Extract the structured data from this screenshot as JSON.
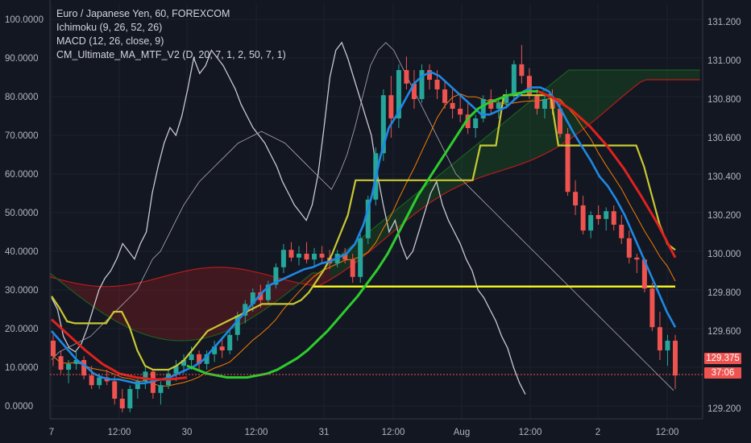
{
  "legend": {
    "symbol": "Euro / Japanese Yen, 60, FOREXCOM",
    "ichimoku": "Ichimoku (9, 26, 52, 26)",
    "macd": "MACD (12, 26, close, 9)",
    "ma": "CM_Ultimate_MA_MTF_V2 (D, 20, 7, 1, 2, 50, 7, 1)"
  },
  "price_tag": {
    "price": "129.375",
    "countdown": "37:06"
  },
  "colors": {
    "background": "#131722",
    "grid": "#1e2230",
    "candle_up": "#26a69a",
    "candle_down": "#ef5350",
    "stoch_white": "#c8c8d0",
    "kijun_yellow": "#c8c832",
    "tenkan_blue": "#1e88e5",
    "ma_green": "#2ecc2e",
    "ma_red": "#e0221e",
    "hline_yellow": "#f0f020",
    "cloud_red": "#b71c1c",
    "cloud_green": "#1b5e20",
    "orange": "#f57c00"
  },
  "chart_data": {
    "type": "line",
    "title": "Euro / Japanese Yen, 60, FOREXCOM",
    "left_axis": {
      "ticks": [
        "100.0000",
        "90.0000",
        "80.0000",
        "70.0000",
        "60.0000",
        "50.0000",
        "40.0000",
        "30.0000",
        "20.0000",
        "10.0000",
        "0.0000"
      ],
      "range": [
        0,
        100
      ]
    },
    "right_axis": {
      "ticks": [
        "131.200",
        "131.000",
        "130.800",
        "130.600",
        "130.400",
        "130.200",
        "130.000",
        "129.800",
        "129.600",
        "129.200"
      ],
      "range": [
        129.1,
        131.3
      ]
    },
    "x_ticks": [
      "7",
      "12:00",
      "30",
      "12:00",
      "31",
      "12:00",
      "Aug",
      "12:00",
      "2",
      "12:00"
    ],
    "horizontal_line": 129.83,
    "candles": [
      [
        129.55,
        129.58,
        129.42,
        129.47
      ],
      [
        129.47,
        129.5,
        129.38,
        129.4
      ],
      [
        129.4,
        129.45,
        129.33,
        129.43
      ],
      [
        129.43,
        129.5,
        129.4,
        129.45
      ],
      [
        129.45,
        129.47,
        129.35,
        129.37
      ],
      [
        129.37,
        129.42,
        129.3,
        129.32
      ],
      [
        129.32,
        129.38,
        129.3,
        129.36
      ],
      [
        129.36,
        129.4,
        129.32,
        129.34
      ],
      [
        129.34,
        129.37,
        129.22,
        129.25
      ],
      [
        129.25,
        129.3,
        129.18,
        129.2
      ],
      [
        129.2,
        129.32,
        129.18,
        129.3
      ],
      [
        129.3,
        129.36,
        129.25,
        129.34
      ],
      [
        129.34,
        129.42,
        129.3,
        129.39
      ],
      [
        129.39,
        129.4,
        129.25,
        129.28
      ],
      [
        129.28,
        129.34,
        129.22,
        129.32
      ],
      [
        129.32,
        129.4,
        129.3,
        129.38
      ],
      [
        129.38,
        129.45,
        129.34,
        129.42
      ],
      [
        129.42,
        129.48,
        129.38,
        129.45
      ],
      [
        129.45,
        129.52,
        129.4,
        129.48
      ],
      [
        129.48,
        129.5,
        129.4,
        129.43
      ],
      [
        129.43,
        129.5,
        129.4,
        129.48
      ],
      [
        129.48,
        129.55,
        129.44,
        129.52
      ],
      [
        129.52,
        129.56,
        129.46,
        129.5
      ],
      [
        129.5,
        129.6,
        129.48,
        129.58
      ],
      [
        129.58,
        129.7,
        129.55,
        129.68
      ],
      [
        129.68,
        129.76,
        129.64,
        129.74
      ],
      [
        129.74,
        129.82,
        129.7,
        129.8
      ],
      [
        129.8,
        129.84,
        129.72,
        129.76
      ],
      [
        129.76,
        129.86,
        129.74,
        129.84
      ],
      [
        129.84,
        129.95,
        129.82,
        129.93
      ],
      [
        129.93,
        130.05,
        129.9,
        130.02
      ],
      [
        130.02,
        130.06,
        129.96,
        129.98
      ],
      [
        129.98,
        130.04,
        129.94,
        130.0
      ],
      [
        130.0,
        130.06,
        129.95,
        129.97
      ],
      [
        129.97,
        130.03,
        129.93,
        130.0
      ],
      [
        130.0,
        130.04,
        129.95,
        129.98
      ],
      [
        129.98,
        130.02,
        129.92,
        129.95
      ],
      [
        129.95,
        130.02,
        129.93,
        130.0
      ],
      [
        130.0,
        130.03,
        129.95,
        129.97
      ],
      [
        129.97,
        130.0,
        129.85,
        129.88
      ],
      [
        129.88,
        130.1,
        129.85,
        130.08
      ],
      [
        130.08,
        130.3,
        130.05,
        130.28
      ],
      [
        130.28,
        130.55,
        130.25,
        130.52
      ],
      [
        130.52,
        130.85,
        130.48,
        130.82
      ],
      [
        130.82,
        130.92,
        130.6,
        130.7
      ],
      [
        130.7,
        130.98,
        130.65,
        130.95
      ],
      [
        130.95,
        131.02,
        130.85,
        130.88
      ],
      [
        130.88,
        130.95,
        130.75,
        130.8
      ],
      [
        130.8,
        130.98,
        130.78,
        130.95
      ],
      [
        130.95,
        130.98,
        130.85,
        130.9
      ],
      [
        130.9,
        130.95,
        130.8,
        130.85
      ],
      [
        130.85,
        130.9,
        130.75,
        130.78
      ],
      [
        130.78,
        130.85,
        130.7,
        130.75
      ],
      [
        130.75,
        130.82,
        130.68,
        130.72
      ],
      [
        130.72,
        130.78,
        130.62,
        130.65
      ],
      [
        130.65,
        130.72,
        130.6,
        130.7
      ],
      [
        130.7,
        130.82,
        130.68,
        130.8
      ],
      [
        130.8,
        130.85,
        130.72,
        130.75
      ],
      [
        130.75,
        130.8,
        130.7,
        130.78
      ],
      [
        130.78,
        130.85,
        130.75,
        130.82
      ],
      [
        130.82,
        131.0,
        130.8,
        130.98
      ],
      [
        130.98,
        131.08,
        130.88,
        130.92
      ],
      [
        130.92,
        130.96,
        130.8,
        130.82
      ],
      [
        130.82,
        130.85,
        130.72,
        130.75
      ],
      [
        130.75,
        130.82,
        130.7,
        130.8
      ],
      [
        130.8,
        130.85,
        130.72,
        130.75
      ],
      [
        130.75,
        130.8,
        130.6,
        130.62
      ],
      [
        130.62,
        130.65,
        130.3,
        130.32
      ],
      [
        130.32,
        130.38,
        130.2,
        130.25
      ],
      [
        130.25,
        130.3,
        130.1,
        130.12
      ],
      [
        130.12,
        130.22,
        130.08,
        130.2
      ],
      [
        130.2,
        130.25,
        130.15,
        130.18
      ],
      [
        130.18,
        130.24,
        130.12,
        130.22
      ],
      [
        130.22,
        130.25,
        130.12,
        130.15
      ],
      [
        130.15,
        130.2,
        130.05,
        130.08
      ],
      [
        130.08,
        130.12,
        129.95,
        129.98
      ],
      [
        129.98,
        130.0,
        129.9,
        129.97
      ],
      [
        129.97,
        129.98,
        129.8,
        129.82
      ],
      [
        129.82,
        129.85,
        129.6,
        129.62
      ],
      [
        129.62,
        129.7,
        129.45,
        129.5
      ],
      [
        129.5,
        129.58,
        129.42,
        129.55
      ],
      [
        129.55,
        129.58,
        129.3,
        129.37
      ]
    ],
    "series": [
      {
        "id": "stoch_white",
        "values": [
          28,
          25,
          18,
          15,
          14,
          16,
          20,
          25,
          30,
          33,
          35,
          38,
          42,
          40,
          38,
          42,
          45,
          55,
          62,
          68,
          72,
          70,
          75,
          82,
          90,
          86,
          88,
          92,
          90,
          88,
          85,
          82,
          78,
          75,
          72,
          70,
          68,
          65,
          62,
          58,
          55,
          52,
          50,
          48,
          52,
          60,
          72,
          85,
          92,
          94,
          90,
          85,
          80,
          75,
          70,
          60,
          52,
          45,
          48,
          42,
          38,
          40,
          45,
          50,
          55,
          58,
          52,
          48,
          45,
          42,
          38,
          35,
          30,
          28,
          25,
          22,
          18,
          15,
          10,
          6,
          3
        ]
      },
      {
        "id": "stoch_thin",
        "values": [
          12,
          14,
          15,
          16,
          17,
          18,
          20,
          22,
          24,
          26,
          28,
          30,
          34,
          38,
          40,
          44,
          48,
          52,
          55,
          58,
          60,
          62,
          64,
          66,
          68,
          69,
          70,
          71,
          70,
          69,
          68,
          66,
          64,
          62,
          60,
          58,
          56,
          60,
          65,
          72,
          80,
          88,
          92,
          94,
          92,
          88,
          84,
          80,
          76,
          72,
          68,
          64,
          60,
          58,
          56,
          54,
          52,
          50,
          48,
          46,
          44,
          42,
          40,
          38,
          36,
          34,
          32,
          30,
          28,
          26,
          24,
          22,
          20,
          18,
          16,
          14,
          12,
          10,
          8,
          6,
          4
        ]
      },
      {
        "id": "kijun_yellow",
        "values": [
          129.78,
          129.72,
          129.65,
          129.64,
          129.64,
          129.64,
          129.64,
          129.64,
          129.7,
          129.7,
          129.62,
          129.5,
          129.42,
          129.4,
          129.4,
          129.4,
          129.42,
          129.45,
          129.5,
          129.55,
          129.6,
          129.62,
          129.64,
          129.66,
          129.68,
          129.7,
          129.72,
          129.74,
          129.74,
          129.74,
          129.74,
          129.74,
          129.76,
          129.8,
          129.86,
          129.92,
          130.0,
          130.1,
          130.2,
          130.38,
          130.38,
          130.38,
          130.38,
          130.38,
          130.38,
          130.38,
          130.38,
          130.38,
          130.38,
          130.38,
          130.38,
          130.38,
          130.38,
          130.38,
          130.38,
          130.56,
          130.56,
          130.56,
          130.82,
          130.82,
          130.82,
          130.82,
          130.82,
          130.82,
          130.82,
          130.56,
          130.56,
          130.56,
          130.56,
          130.56,
          130.56,
          130.56,
          130.56,
          130.56,
          130.56,
          130.56,
          130.45,
          130.3,
          130.15,
          130.05,
          130.02
        ]
      },
      {
        "id": "tenkan_blue",
        "values": [
          129.6,
          129.55,
          129.5,
          129.45,
          129.42,
          129.38,
          129.36,
          129.35,
          129.35,
          129.34,
          129.33,
          129.33,
          129.34,
          129.35,
          129.36,
          129.38,
          129.4,
          129.42,
          129.45,
          129.5,
          129.55,
          129.6,
          129.65,
          129.7,
          129.75,
          129.8,
          129.84,
          129.86,
          129.88,
          129.9,
          129.92,
          129.93,
          129.95,
          129.96,
          129.98,
          130.0,
          130.05,
          130.15,
          130.3,
          130.5,
          130.65,
          130.72,
          130.8,
          130.88,
          130.92,
          130.94,
          130.92,
          130.88,
          130.84,
          130.8,
          130.76,
          130.72,
          130.72,
          130.74,
          130.76,
          130.8,
          130.84,
          130.86,
          130.86,
          130.84,
          130.78,
          130.7,
          130.62,
          130.55,
          130.48,
          130.4,
          130.35,
          130.28,
          130.2,
          130.1,
          130.0,
          129.9,
          129.8,
          129.7,
          129.62
        ]
      },
      {
        "id": "ma_green",
        "values": [
          129.42,
          129.4,
          129.38,
          129.37,
          129.36,
          129.36,
          129.36,
          129.37,
          129.38,
          129.4,
          129.43,
          129.46,
          129.5,
          129.55,
          129.6,
          129.66,
          129.72,
          129.78,
          129.85,
          129.92,
          130.0,
          130.1,
          130.2,
          130.3,
          130.38,
          130.46,
          130.54,
          130.62,
          130.7,
          130.75,
          130.78,
          130.8,
          130.82,
          130.83,
          130.84,
          130.84
        ]
      },
      {
        "id": "ma_red",
        "values": [
          129.66,
          129.58,
          129.5,
          129.43,
          129.38,
          129.36,
          129.35,
          129.35,
          129.36
        ]
      },
      {
        "id": "ma_red_right",
        "values": [
          130.84,
          130.8,
          130.74,
          130.66,
          130.56,
          130.44,
          130.3,
          130.15,
          129.98
        ]
      }
    ]
  }
}
